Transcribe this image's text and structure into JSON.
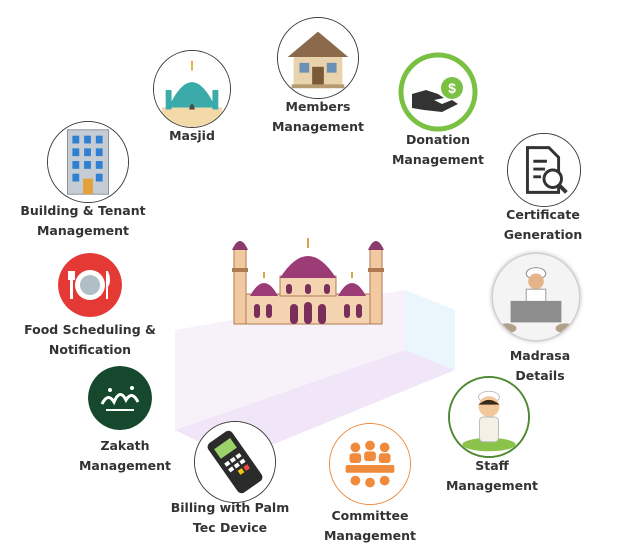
{
  "diagram": {
    "center": {
      "icon": "mosque-illustration"
    },
    "modules": [
      {
        "key": "masjid",
        "icon": "masjid-dome-icon",
        "lines": [
          "Masjid"
        ]
      },
      {
        "key": "members",
        "icon": "house-icon",
        "lines": [
          "Members",
          "Management"
        ]
      },
      {
        "key": "donation",
        "icon": "donation-hand-dollar-icon",
        "lines": [
          "Donation",
          "Management"
        ]
      },
      {
        "key": "certificate",
        "icon": "certificate-search-icon",
        "lines": [
          "Certificate",
          "Generation"
        ]
      },
      {
        "key": "madrasa",
        "icon": "madrasa-teacher-icon",
        "lines": [
          "Madrasa",
          "Details"
        ]
      },
      {
        "key": "staff",
        "icon": "staff-boy-icon",
        "lines": [
          "Staff",
          "Management"
        ]
      },
      {
        "key": "committee",
        "icon": "committee-meeting-icon",
        "lines": [
          "Committee",
          "Management"
        ]
      },
      {
        "key": "billing",
        "icon": "palm-tec-device-icon",
        "lines": [
          "Billing with Palm",
          "Tec Device"
        ]
      },
      {
        "key": "zakath",
        "icon": "zakath-calligraphy-icon",
        "lines": [
          "Zakath",
          "Management"
        ]
      },
      {
        "key": "food",
        "icon": "food-plate-icon",
        "lines": [
          "Food Scheduling &",
          "Notification"
        ]
      },
      {
        "key": "building",
        "icon": "building-icon",
        "lines": [
          "Building & Tenant",
          "Management"
        ]
      }
    ]
  }
}
